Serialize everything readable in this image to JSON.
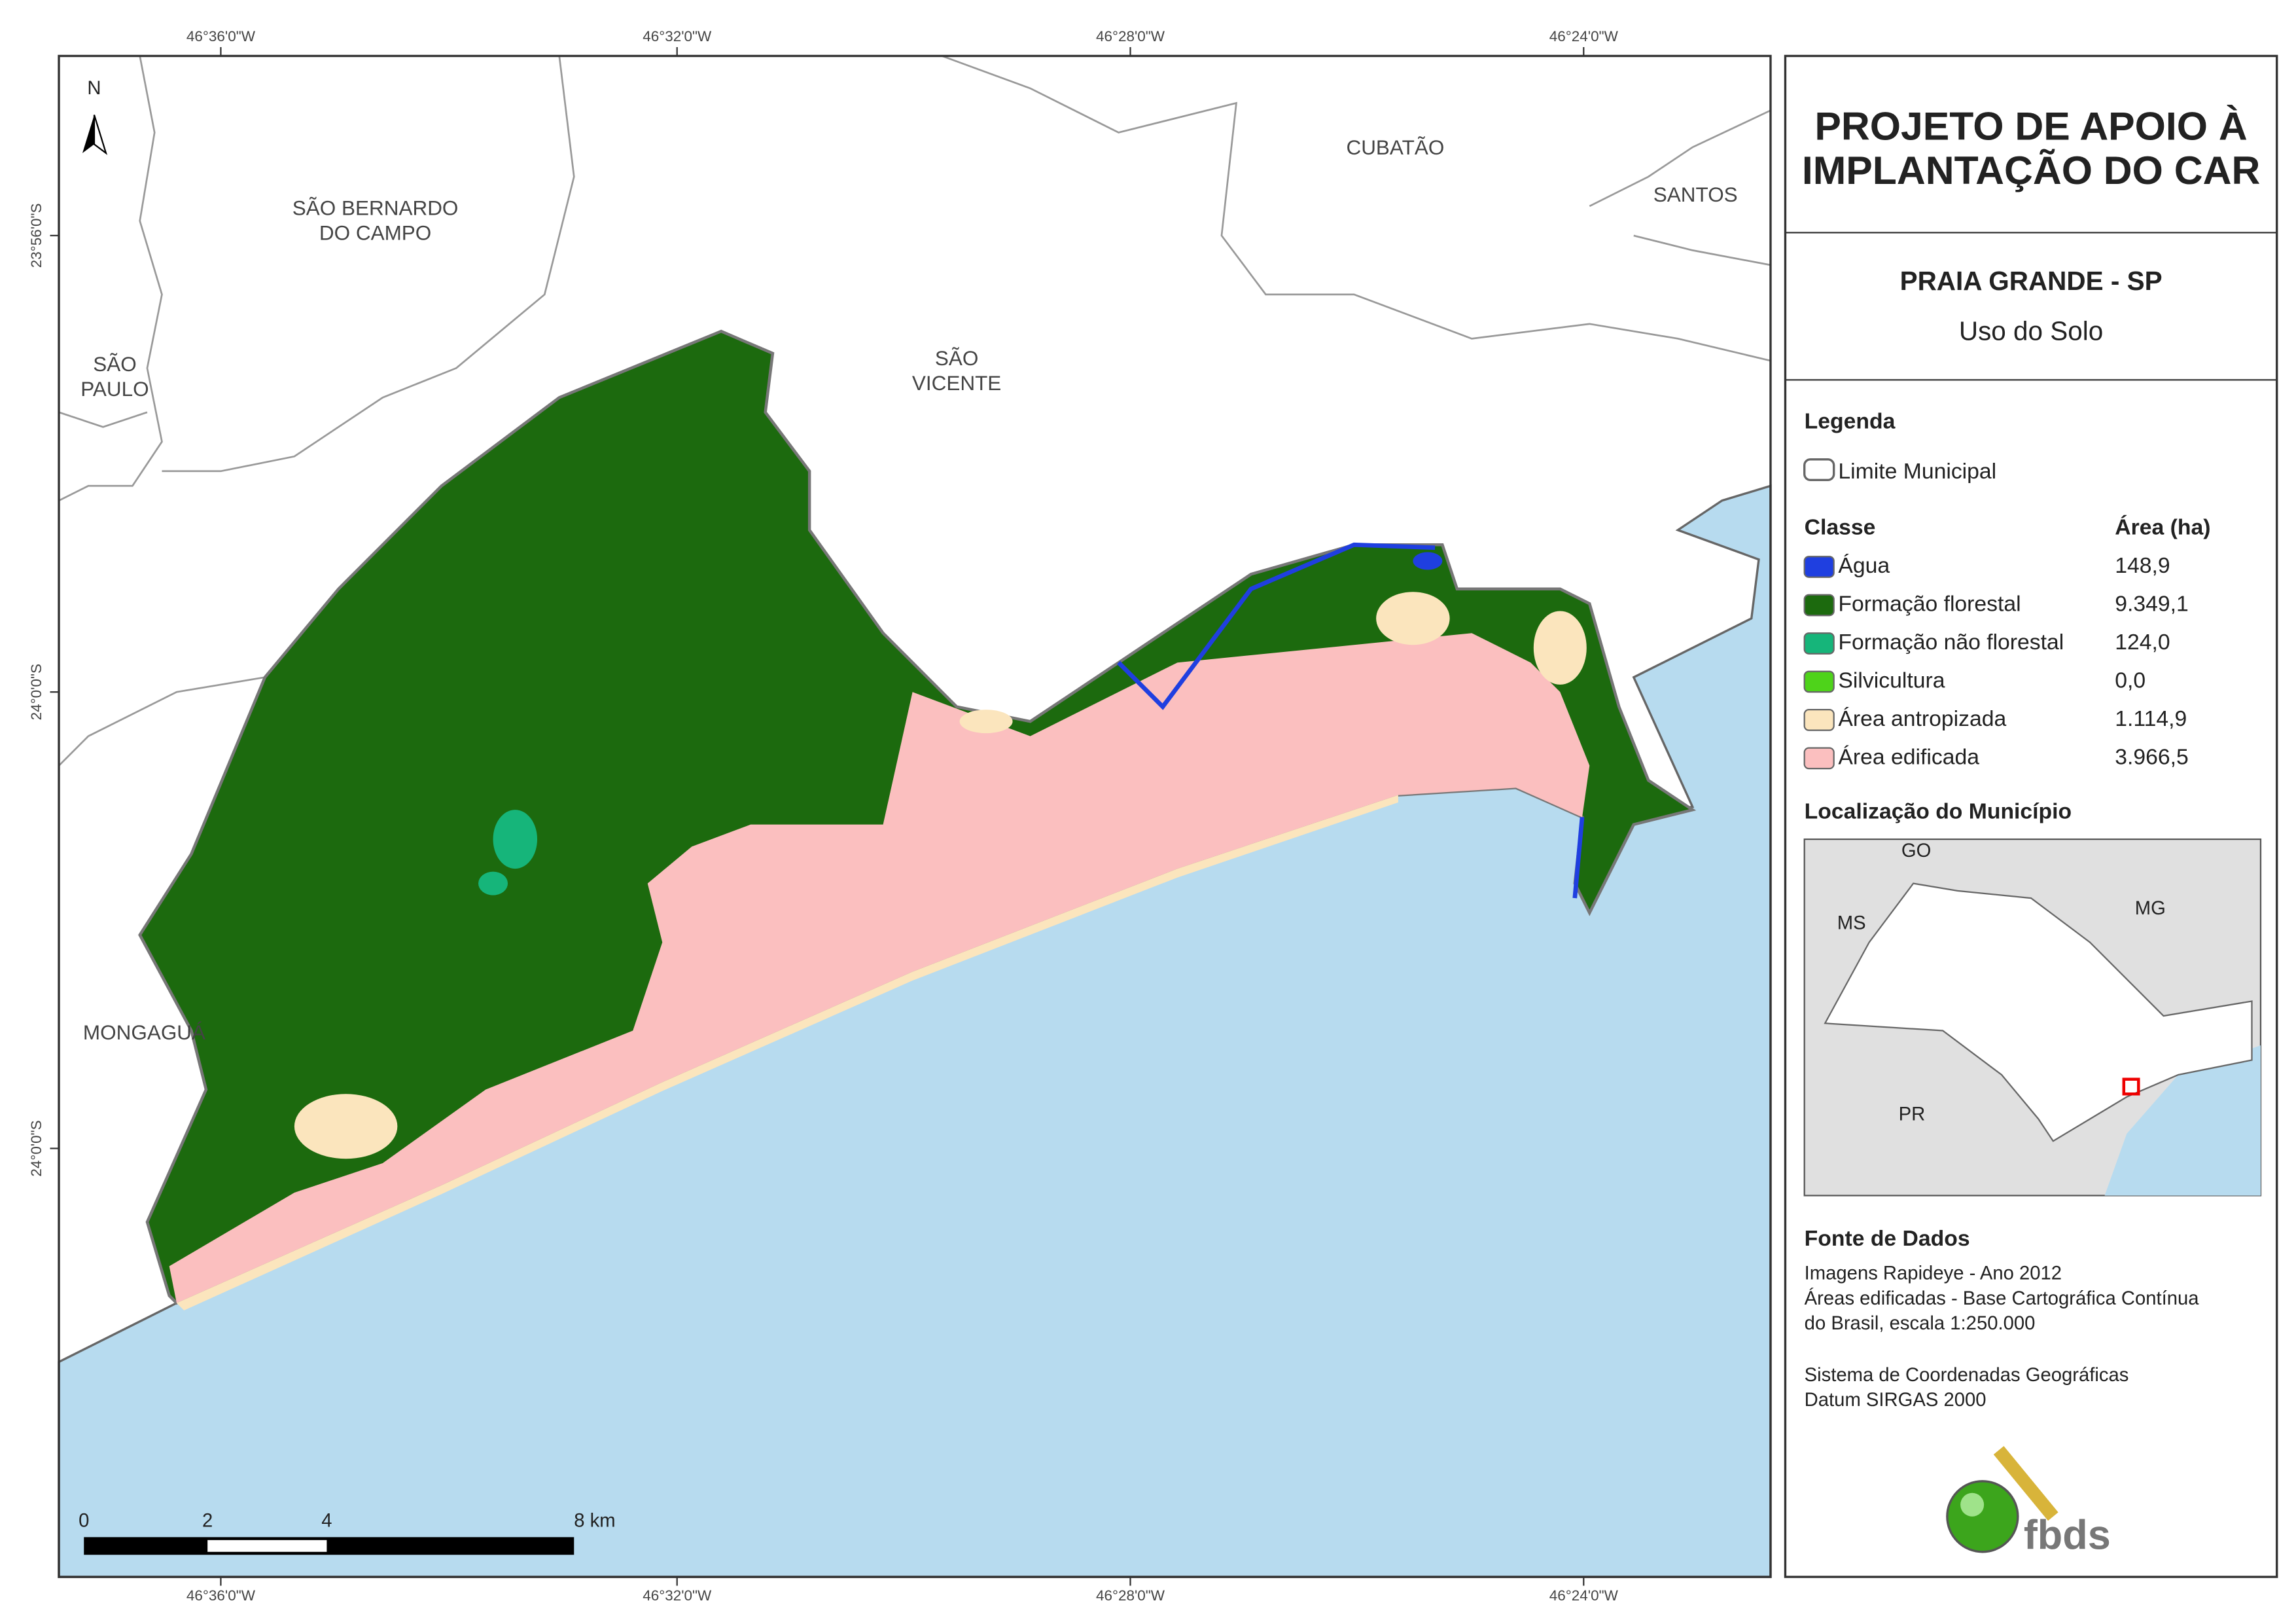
{
  "map": {
    "north": "N",
    "grid_labels": {
      "top": [
        "46°36'0\"W",
        "46°32'0\"W",
        "46°28'0\"W",
        "46°24'0\"W"
      ],
      "bottom": [
        "46°36'0\"W",
        "46°32'0\"W",
        "46°28'0\"W",
        "46°24'0\"W"
      ],
      "left": [
        "23°56'0\"S",
        "24°0'0\"S",
        "24°0'0\"S"
      ]
    },
    "places": [
      {
        "lines": [
          "SÃO BERNARDO",
          "DO CAMPO"
        ]
      },
      {
        "lines": [
          "CUBATÃO"
        ]
      },
      {
        "lines": [
          "SANTOS"
        ]
      },
      {
        "lines": [
          "SÃO",
          "PAULO"
        ]
      },
      {
        "lines": [
          "SÃO",
          "VICENTE"
        ]
      },
      {
        "lines": [
          "MONGAGUÁ"
        ]
      }
    ],
    "scale_bar": [
      "0",
      "2",
      "4",
      "8 km"
    ]
  },
  "panel": {
    "title": [
      "PROJETO DE APOIO À",
      "IMPLANTAÇÃO DO CAR"
    ],
    "subtitle": "PRAIA GRANDE - SP",
    "theme": "Uso do Solo",
    "legend": {
      "heading": "Legenda",
      "boundary": "Limite Municipal",
      "class_header": "Classe",
      "area_header": "Área (ha)",
      "classes": [
        {
          "name": "Água",
          "color": "#1f3fe0",
          "area": "148,9"
        },
        {
          "name": "Formação florestal",
          "color": "#1c6a0e",
          "area": "9.349,1"
        },
        {
          "name": "Formação não florestal",
          "color": "#16b57a",
          "area": "124,0"
        },
        {
          "name": "Silvicultura",
          "color": "#4ed31a",
          "area": "0,0"
        },
        {
          "name": "Área antropizada",
          "color": "#fbe5bd",
          "area": "1.114,9"
        },
        {
          "name": "Área edificada",
          "color": "#fbbfbf",
          "area": "3.966,5"
        }
      ]
    },
    "location": {
      "heading": "Localização do Município",
      "labels": [
        "GO",
        "MS",
        "MG",
        "PR"
      ]
    },
    "sources": {
      "heading": "Fonte de Dados",
      "lines": [
        "Imagens Rapideye - Ano 2012",
        "Áreas edificadas - Base Cartográfica Contínua",
        "do Brasil, escala 1:250.000",
        "Sistema de Coordenadas Geográficas",
        "Datum SIRGAS 2000"
      ]
    },
    "logo": "fbds"
  }
}
